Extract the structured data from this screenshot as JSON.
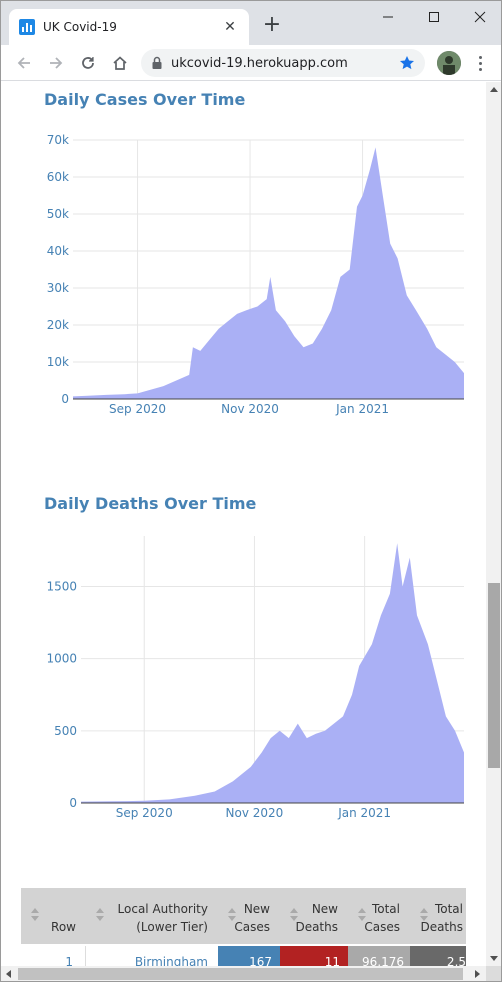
{
  "browser": {
    "tab_title": "UK Covid-19",
    "tab_close": "✕",
    "new_tab": "+",
    "url": "ukcovid-19.herokuapp.com"
  },
  "colors": {
    "title": "#4682b4",
    "area_fill": "#aab0f5",
    "tick": "#4682b4",
    "header_bg": "#d3d3d3",
    "new_cases": "#4682b4",
    "new_deaths": "#b22222",
    "total_cases": "#a9a9a9",
    "total_deaths": "#696969"
  },
  "charts": [
    {
      "title": "Daily Cases Over Time",
      "chart_data": {
        "type": "area",
        "x_ticks": [
          "Sep 2020",
          "Nov 2020",
          "Jan 2021"
        ],
        "y_ticks": [
          "0",
          "10k",
          "20k",
          "30k",
          "40k",
          "50k",
          "60k",
          "70k"
        ],
        "ylim": [
          0,
          70000
        ],
        "xlim": [
          "2020-07-28",
          "2021-02-25"
        ],
        "grid": true,
        "series": [
          {
            "values": [
              [
                "2020-07-28",
                700
              ],
              [
                "2020-08-05",
                900
              ],
              [
                "2020-08-15",
                1100
              ],
              [
                "2020-08-25",
                1300
              ],
              [
                "2020-09-01",
                1500
              ],
              [
                "2020-09-08",
                2500
              ],
              [
                "2020-09-15",
                3500
              ],
              [
                "2020-09-22",
                5000
              ],
              [
                "2020-09-29",
                6500
              ],
              [
                "2020-10-01",
                14000
              ],
              [
                "2020-10-05",
                13000
              ],
              [
                "2020-10-10",
                16000
              ],
              [
                "2020-10-15",
                19000
              ],
              [
                "2020-10-20",
                21000
              ],
              [
                "2020-10-25",
                23000
              ],
              [
                "2020-10-30",
                24000
              ],
              [
                "2020-11-05",
                25000
              ],
              [
                "2020-11-10",
                27000
              ],
              [
                "2020-11-12",
                33000
              ],
              [
                "2020-11-15",
                24000
              ],
              [
                "2020-11-20",
                21000
              ],
              [
                "2020-11-25",
                17000
              ],
              [
                "2020-11-30",
                14000
              ],
              [
                "2020-12-05",
                15000
              ],
              [
                "2020-12-10",
                19000
              ],
              [
                "2020-12-15",
                24000
              ],
              [
                "2020-12-20",
                33000
              ],
              [
                "2020-12-25",
                35000
              ],
              [
                "2020-12-29",
                52000
              ],
              [
                "2021-01-01",
                55000
              ],
              [
                "2021-01-05",
                62000
              ],
              [
                "2021-01-08",
                68000
              ],
              [
                "2021-01-12",
                55000
              ],
              [
                "2021-01-16",
                42000
              ],
              [
                "2021-01-20",
                38000
              ],
              [
                "2021-01-25",
                28000
              ],
              [
                "2021-01-30",
                24000
              ],
              [
                "2021-02-05",
                19000
              ],
              [
                "2021-02-10",
                14000
              ],
              [
                "2021-02-15",
                12000
              ],
              [
                "2021-02-20",
                10000
              ],
              [
                "2021-02-25",
                7000
              ]
            ]
          }
        ]
      }
    },
    {
      "title": "Daily Deaths Over Time",
      "chart_data": {
        "type": "area",
        "x_ticks": [
          "Sep 2020",
          "Nov 2020",
          "Jan 2021"
        ],
        "y_ticks": [
          "0",
          "500",
          "1000",
          "1500"
        ],
        "ylim": [
          0,
          1850
        ],
        "xlim": [
          "2020-07-28",
          "2021-02-25"
        ],
        "grid": true,
        "series": [
          {
            "values": [
              [
                "2020-07-28",
                10
              ],
              [
                "2020-08-15",
                12
              ],
              [
                "2020-09-01",
                15
              ],
              [
                "2020-09-15",
                25
              ],
              [
                "2020-09-29",
                50
              ],
              [
                "2020-10-10",
                80
              ],
              [
                "2020-10-20",
                150
              ],
              [
                "2020-10-30",
                250
              ],
              [
                "2020-11-05",
                350
              ],
              [
                "2020-11-10",
                450
              ],
              [
                "2020-11-15",
                500
              ],
              [
                "2020-11-20",
                450
              ],
              [
                "2020-11-25",
                550
              ],
              [
                "2020-11-30",
                450
              ],
              [
                "2020-12-05",
                480
              ],
              [
                "2020-12-10",
                500
              ],
              [
                "2020-12-15",
                550
              ],
              [
                "2020-12-20",
                600
              ],
              [
                "2020-12-25",
                750
              ],
              [
                "2020-12-29",
                950
              ],
              [
                "2021-01-05",
                1100
              ],
              [
                "2021-01-10",
                1300
              ],
              [
                "2021-01-15",
                1450
              ],
              [
                "2021-01-19",
                1800
              ],
              [
                "2021-01-22",
                1500
              ],
              [
                "2021-01-26",
                1700
              ],
              [
                "2021-01-30",
                1300
              ],
              [
                "2021-02-05",
                1100
              ],
              [
                "2021-02-10",
                850
              ],
              [
                "2021-02-15",
                600
              ],
              [
                "2021-02-20",
                500
              ],
              [
                "2021-02-25",
                350
              ]
            ]
          }
        ]
      }
    }
  ],
  "table": {
    "headers": [
      {
        "line1": "",
        "line2": "Row"
      },
      {
        "line1": "Local Authority",
        "line2": "(Lower Tier)"
      },
      {
        "line1": "New",
        "line2": "Cases"
      },
      {
        "line1": "New",
        "line2": "Deaths"
      },
      {
        "line1": "Total",
        "line2": "Cases"
      },
      {
        "line1": "Total",
        "line2": "Deaths"
      }
    ],
    "rows": [
      {
        "row": "1",
        "authority": "Birmingham",
        "new_cases": "167",
        "new_deaths": "11",
        "total_cases": "96,176",
        "total_deaths": "2,5"
      }
    ]
  }
}
